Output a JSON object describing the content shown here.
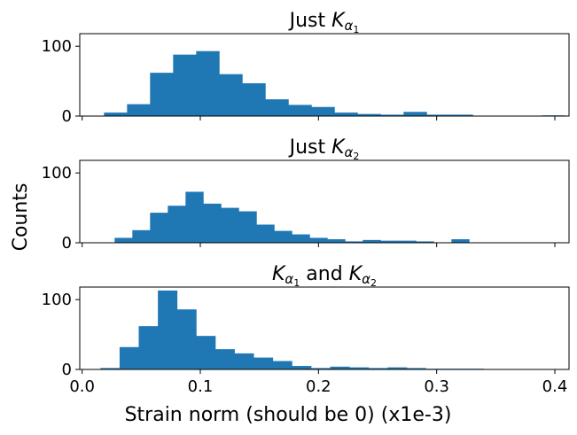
{
  "figure": {
    "ylabel": "Counts",
    "xlabel": "Strain norm (should be 0) (x1e-3)"
  },
  "chart_data": [
    {
      "type": "bar",
      "title_parts": [
        "Just ",
        "K",
        "α",
        "1",
        ""
      ],
      "x_range": [
        -0.002,
        0.412
      ],
      "ylim": [
        0,
        118
      ],
      "yticks": [
        0,
        100
      ],
      "xticks": [
        0.0,
        0.1,
        0.2,
        0.3,
        0.4
      ],
      "x_tick_labels_shown": false,
      "bin_width": 0.0195,
      "bin_starts": [
        0.0185,
        0.038,
        0.0575,
        0.077,
        0.0965,
        0.116,
        0.1355,
        0.155,
        0.1745,
        0.194,
        0.2135,
        0.233,
        0.2525,
        0.272,
        0.2915,
        0.311,
        0.3305,
        0.35,
        0.3695,
        0.389
      ],
      "counts": [
        5,
        17,
        62,
        88,
        93,
        60,
        47,
        24,
        16,
        13,
        5,
        3,
        2,
        6,
        2,
        2,
        0,
        0,
        0,
        1
      ]
    },
    {
      "type": "bar",
      "title_parts": [
        "Just ",
        "K",
        "α",
        "2",
        ""
      ],
      "x_range": [
        -0.002,
        0.412
      ],
      "ylim": [
        0,
        118
      ],
      "yticks": [
        0,
        100
      ],
      "xticks": [
        0.0,
        0.1,
        0.2,
        0.3,
        0.4
      ],
      "x_tick_labels_shown": false,
      "bin_width": 0.015,
      "bin_starts": [
        0.0275,
        0.0425,
        0.0575,
        0.0725,
        0.0875,
        0.1025,
        0.1175,
        0.1325,
        0.1475,
        0.1625,
        0.1775,
        0.1925,
        0.2075,
        0.2225,
        0.2375,
        0.2525,
        0.2675,
        0.2825,
        0.2975,
        0.3125
      ],
      "counts": [
        7,
        18,
        43,
        53,
        73,
        56,
        50,
        45,
        26,
        17,
        12,
        7,
        5,
        2,
        4,
        3,
        3,
        2,
        0,
        5
      ]
    },
    {
      "type": "bar",
      "title_parts": [
        "",
        "K",
        "α",
        "1",
        " and "
      ],
      "title_parts_2": [
        "K",
        "α",
        "2"
      ],
      "x_range": [
        -0.002,
        0.412
      ],
      "ylim": [
        0,
        118
      ],
      "yticks": [
        0,
        100
      ],
      "xticks": [
        0.0,
        0.1,
        0.2,
        0.3,
        0.4
      ],
      "xtick_labels": [
        "0.0",
        "0.1",
        "0.2",
        "0.3",
        "0.4"
      ],
      "x_tick_labels_shown": true,
      "bin_width": 0.0162,
      "bin_starts": [
        0.0155,
        0.0317,
        0.0479,
        0.0641,
        0.0803,
        0.0965,
        0.1127,
        0.1289,
        0.1451,
        0.1613,
        0.1775,
        0.1937,
        0.2099,
        0.2261,
        0.2423,
        0.2585,
        0.2747,
        0.2909,
        0.3071,
        0.3233
      ],
      "counts": [
        2,
        32,
        62,
        113,
        86,
        48,
        29,
        23,
        17,
        12,
        5,
        2,
        4,
        3,
        2,
        3,
        2,
        1,
        1,
        1
      ]
    }
  ],
  "colors": {
    "bar": "#1f77b4",
    "axis": "#000000",
    "background": "#ffffff"
  }
}
